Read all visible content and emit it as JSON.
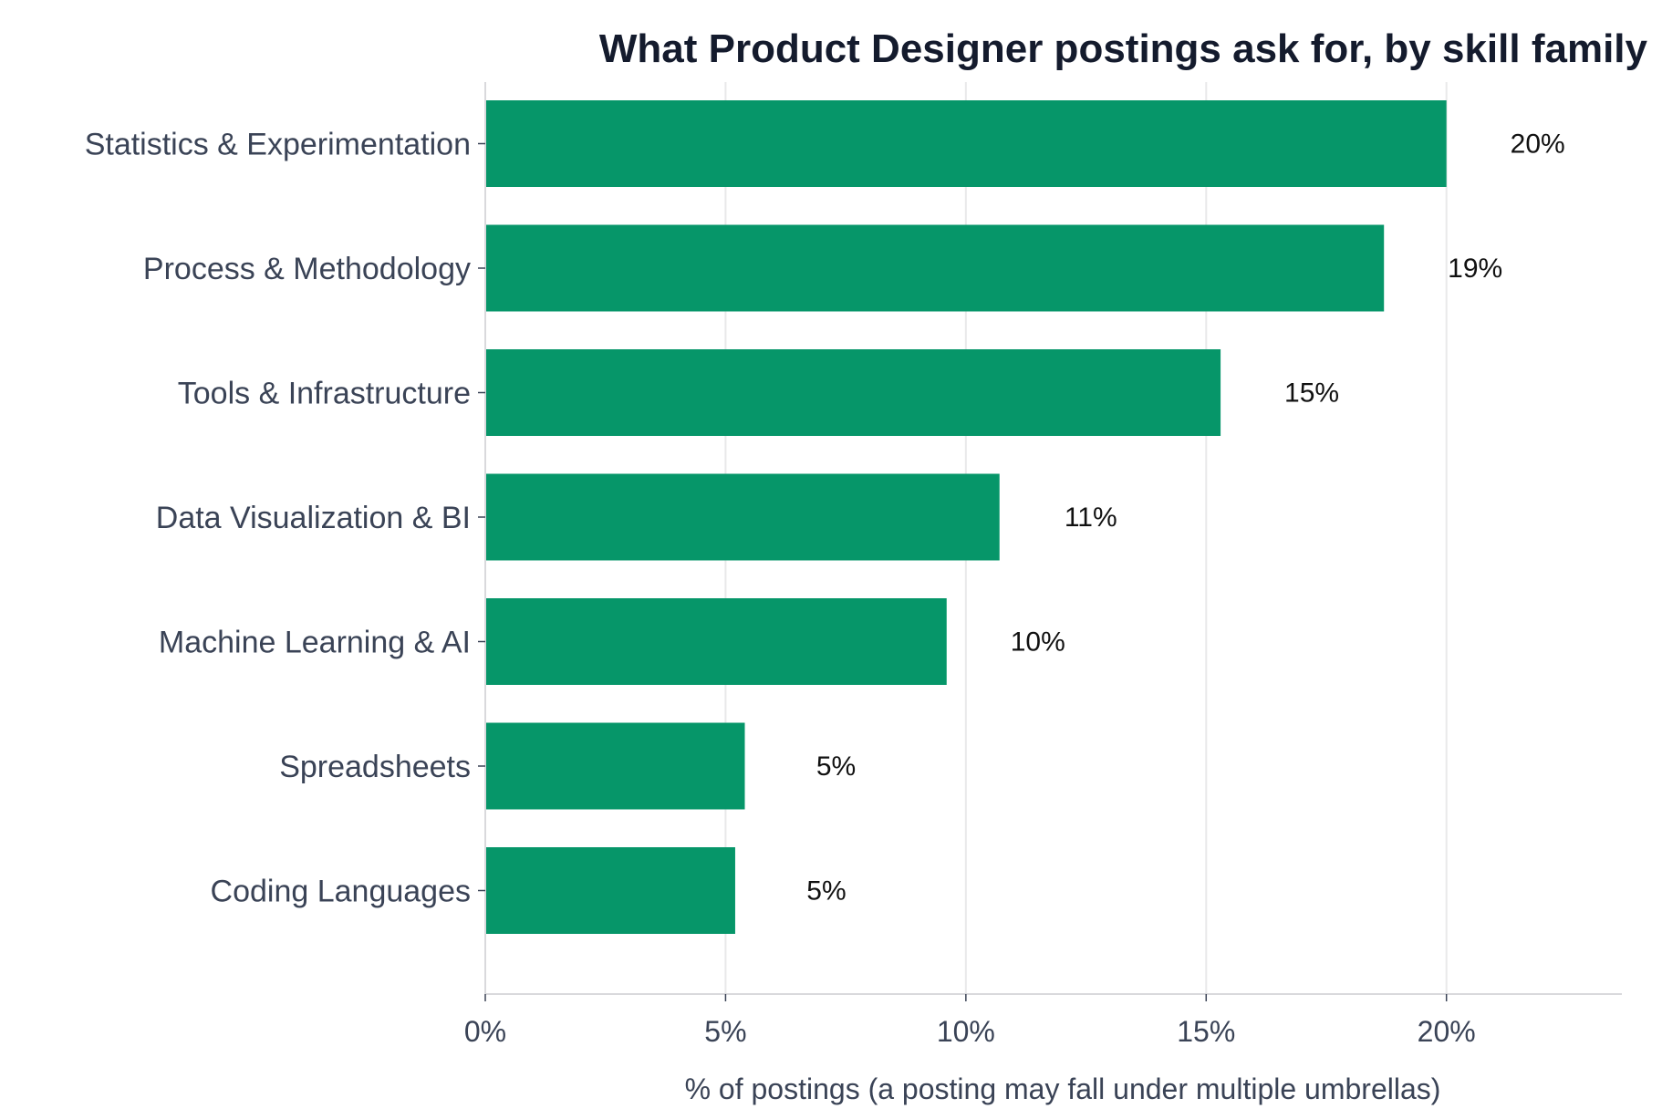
{
  "chart_data": {
    "type": "bar",
    "orientation": "horizontal",
    "title": "What Product Designer postings ask for, by skill family",
    "xlabel": "% of postings (a posting may fall under multiple umbrellas)",
    "ylabel": "",
    "categories": [
      "Statistics & Experimentation",
      "Process & Methodology",
      "Tools & Infrastructure",
      "Data Visualization & BI",
      "Machine Learning & AI",
      "Spreadsheets",
      "Coding Languages"
    ],
    "values": [
      20.0,
      18.7,
      15.3,
      10.7,
      9.6,
      5.4,
      5.2
    ],
    "data_labels": [
      "20%",
      "19%",
      "15%",
      "11%",
      "10%",
      "5%",
      "5%"
    ],
    "xlim": [
      0,
      23.65
    ],
    "xticks": [
      0,
      5,
      10,
      15,
      20
    ],
    "xtick_labels": [
      "0%",
      "5%",
      "10%",
      "15%",
      "20%"
    ],
    "grid": "vertical",
    "bar_color": "#069669",
    "legend": "none"
  }
}
